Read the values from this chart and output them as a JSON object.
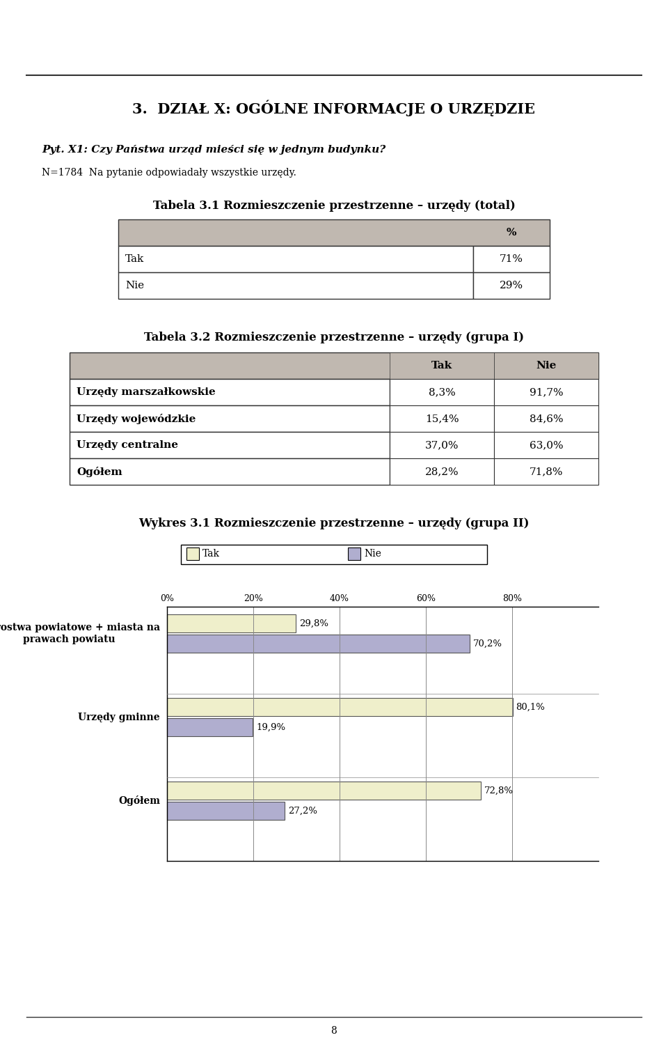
{
  "page_title": "3.  DZIAŁ X: OGÓLNE INFORMACJE O URZĘDZIE",
  "question": "Pyt. X1: Czy Państwa urząd mieści się w jednym budynku?",
  "note": "N=1784  Na pytanie odpowiadały wszystkie urzędy.",
  "table1_title": "Tabela 3.1 Rozmieszczenie przestrzenne – urzędy (total)",
  "table1_headers": [
    "%"
  ],
  "table1_rows": [
    [
      "Tak",
      "71%"
    ],
    [
      "Nie",
      "29%"
    ]
  ],
  "table2_title": "Tabela 3.2 Rozmieszczenie przestrzenne – urzędy (grupa I)",
  "table2_col_headers": [
    "Tak",
    "Nie"
  ],
  "table2_rows": [
    [
      "Urzędy marszałkowskie",
      "8,3%",
      "91,7%"
    ],
    [
      "Urzędy wojewódzkie",
      "15,4%",
      "84,6%"
    ],
    [
      "Urzędy centralne",
      "37,0%",
      "63,0%"
    ],
    [
      "Ogółem",
      "28,2%",
      "71,8%"
    ]
  ],
  "chart_title": "Wykres 3.1 Rozmieszczenie przestrzenne – urzędy (grupa II)",
  "chart_categories": [
    "Starostwa powiatowe + miasta na\nprawach powiatu",
    "Urzędy gminne",
    "Ogółem"
  ],
  "chart_tak_values": [
    29.8,
    80.1,
    72.8
  ],
  "chart_nie_values": [
    70.2,
    19.9,
    27.2
  ],
  "chart_tak_labels": [
    "29,8%",
    "80,1%",
    "72,8%"
  ],
  "chart_nie_labels": [
    "70,2%",
    "19,9%",
    "27,2%"
  ],
  "color_tak": "#EFEFCB",
  "color_nie": "#B0AECF",
  "header_bg": "#C0B8B0",
  "table_border": "#333333",
  "background": "#ffffff",
  "text_color": "#000000",
  "bar_outline": "#555555"
}
